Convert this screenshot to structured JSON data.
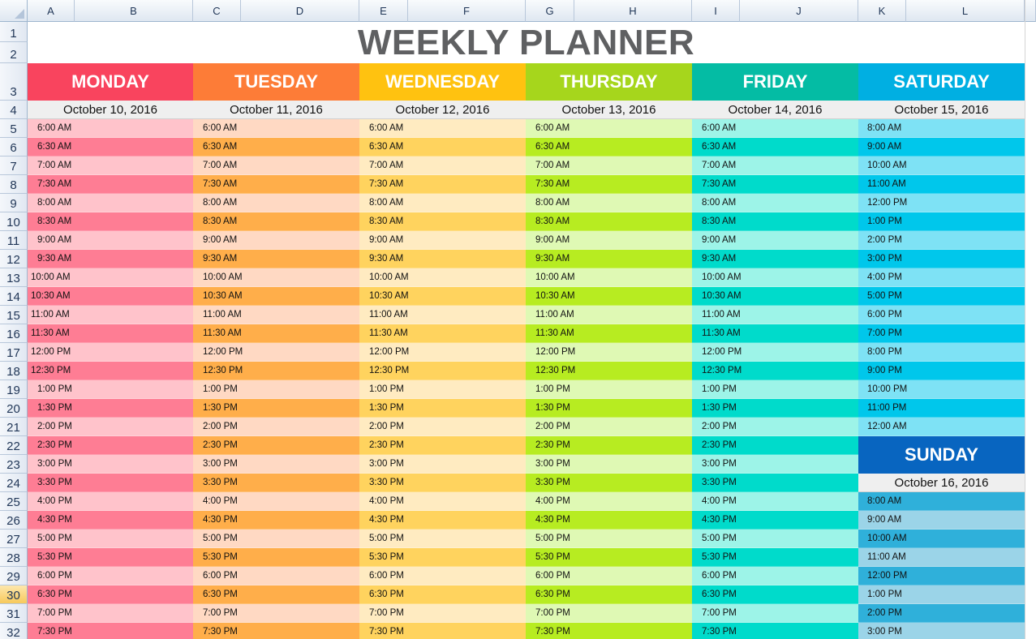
{
  "columns": [
    "A",
    "B",
    "C",
    "D",
    "E",
    "F",
    "G",
    "H",
    "I",
    "J",
    "K",
    "L"
  ],
  "rows": [
    "1",
    "2",
    "3",
    "4",
    "5",
    "6",
    "7",
    "8",
    "9",
    "10",
    "11",
    "12",
    "13",
    "14",
    "15",
    "16",
    "17",
    "18",
    "19",
    "20",
    "21",
    "22",
    "23",
    "24",
    "25",
    "26",
    "27",
    "28",
    "29",
    "30",
    "31",
    "32"
  ],
  "selected_row": "30",
  "title": "WEEKLY PLANNER",
  "days": [
    {
      "name": "MONDAY",
      "date": "October 10, 2016",
      "header_color": "#f9445e",
      "light": "#ffc3cb",
      "dark": "#fe7d94"
    },
    {
      "name": "TUESDAY",
      "date": "October 11, 2016",
      "header_color": "#fd7c37",
      "light": "#ffd9c3",
      "dark": "#ffae4a"
    },
    {
      "name": "WEDNESDAY",
      "date": "October 12, 2016",
      "header_color": "#ffc210",
      "light": "#ffebc1",
      "dark": "#ffd35e"
    },
    {
      "name": "THURSDAY",
      "date": "October 13, 2016",
      "header_color": "#a6d61c",
      "light": "#dff9b4",
      "dark": "#b7ec21"
    },
    {
      "name": "FRIDAY",
      "date": "October 14, 2016",
      "header_color": "#04bca4",
      "light": "#9df4e8",
      "dark": "#00dbcb"
    },
    {
      "name": "SATURDAY",
      "date": "October 15, 2016",
      "header_color": "#00afe2",
      "light": "#7ee2f5",
      "dark": "#00c7eb"
    },
    {
      "name": "SUNDAY",
      "date": "October 16, 2016",
      "header_color": "#0865c0",
      "light": "#9bd4e8",
      "dark": "#2fb0da"
    }
  ],
  "weekday_times": [
    "6:00 AM",
    "6:30 AM",
    "7:00 AM",
    "7:30 AM",
    "8:00 AM",
    "8:30 AM",
    "9:00 AM",
    "9:30 AM",
    "10:00 AM",
    "10:30 AM",
    "11:00 AM",
    "11:30 AM",
    "12:00 PM",
    "12:30 PM",
    "1:00 PM",
    "1:30 PM",
    "2:00 PM",
    "2:30 PM",
    "3:00 PM",
    "3:30 PM",
    "4:00 PM",
    "4:30 PM",
    "5:00 PM",
    "5:30 PM",
    "6:00 PM",
    "6:30 PM",
    "7:00 PM",
    "7:30 PM"
  ],
  "saturday_times": [
    "8:00 AM",
    "9:00 AM",
    "10:00 AM",
    "11:00 AM",
    "12:00 PM",
    "1:00 PM",
    "2:00 PM",
    "3:00 PM",
    "4:00 PM",
    "5:00 PM",
    "6:00 PM",
    "7:00 PM",
    "8:00 PM",
    "9:00 PM",
    "10:00 PM",
    "11:00 PM",
    "12:00 AM"
  ],
  "sunday_times": [
    "8:00 AM",
    "9:00 AM",
    "10:00 AM",
    "11:00 AM",
    "12:00 PM",
    "1:00 PM",
    "2:00 PM",
    "3:00 PM"
  ]
}
